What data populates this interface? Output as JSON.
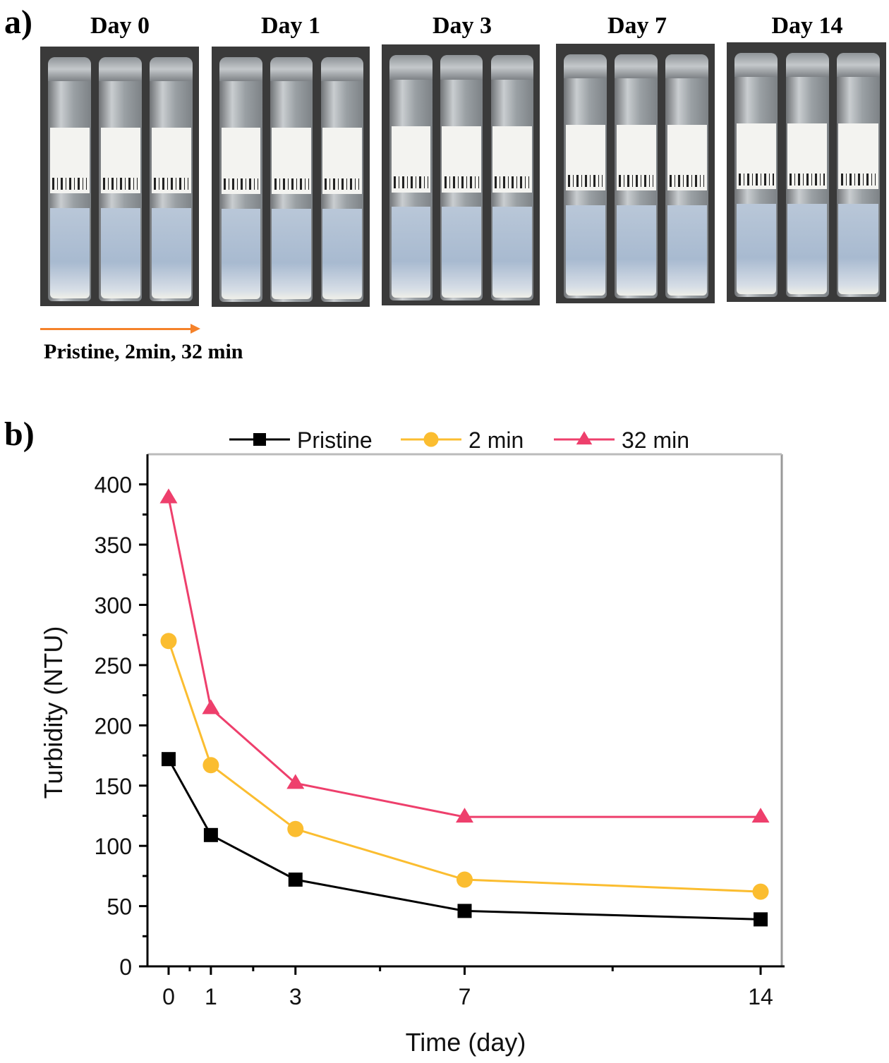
{
  "panel_a": {
    "label": "a)",
    "days": [
      {
        "label": "Day 0"
      },
      {
        "label": "Day 1"
      },
      {
        "label": "Day 3"
      },
      {
        "label": "Day 7"
      },
      {
        "label": "Day 14"
      }
    ],
    "arrow_color": "#f5822a",
    "caption": "Pristine, 2min, 32 min"
  },
  "panel_b": {
    "label": "b)"
  },
  "chart_data": {
    "type": "line",
    "title": "",
    "xlabel": "Time (day)",
    "ylabel": "Turbidity (NTU)",
    "x": [
      0,
      1,
      3,
      7,
      14
    ],
    "xticks": [
      0,
      1,
      3,
      7,
      14
    ],
    "xtick_labels": [
      "0",
      "1",
      "3",
      "7",
      "14"
    ],
    "xlim": [
      -0.5,
      14.5
    ],
    "ylim": [
      0,
      425
    ],
    "yticks": [
      0,
      50,
      100,
      150,
      200,
      250,
      300,
      350,
      400
    ],
    "ytick_labels": [
      "0",
      "50",
      "100",
      "150",
      "200",
      "250",
      "300",
      "350",
      "400"
    ],
    "grid": false,
    "legend_position": "top",
    "series": [
      {
        "name": "Pristine",
        "color": "#000000",
        "marker": "square",
        "values": [
          172,
          109,
          72,
          46,
          39
        ]
      },
      {
        "name": "2 min",
        "color": "#fbbd30",
        "marker": "circle",
        "values": [
          270,
          167,
          114,
          72,
          62
        ]
      },
      {
        "name": "32 min",
        "color": "#ee3f6c",
        "marker": "triangle",
        "values": [
          389,
          214,
          152,
          124,
          124
        ]
      }
    ]
  }
}
